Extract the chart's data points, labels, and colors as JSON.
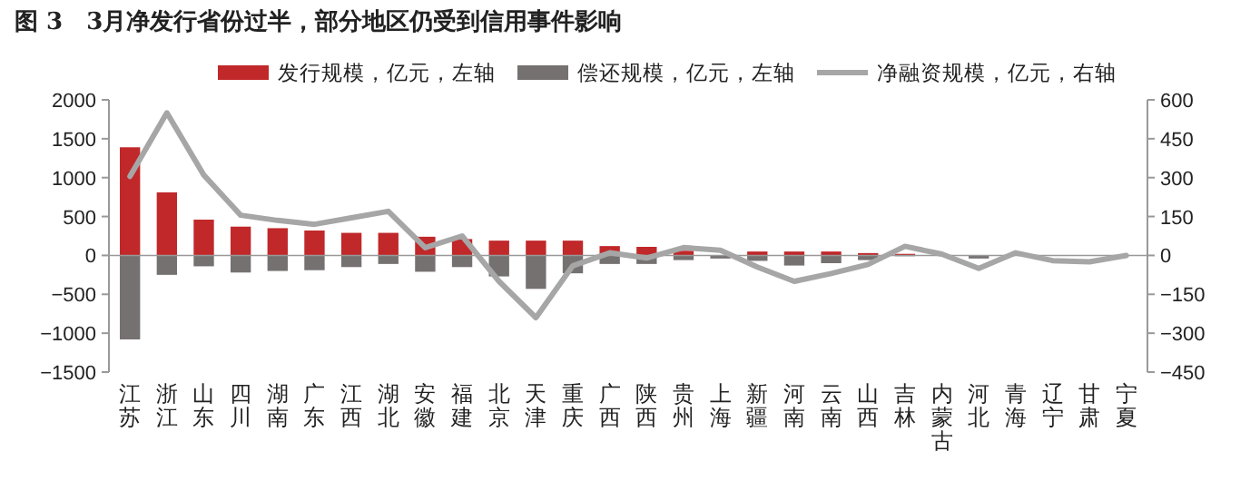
{
  "chart_data": {
    "type": "bar",
    "title": "图 3　3月净发行省份过半，部分地区仍受到信用事件影响",
    "categories": [
      "江苏",
      "浙江",
      "山东",
      "四川",
      "湖南",
      "广东",
      "江西",
      "湖北",
      "安徽",
      "福建",
      "北京",
      "天津",
      "重庆",
      "广西",
      "陕西",
      "贵州",
      "上海",
      "新疆",
      "河南",
      "云南",
      "山西",
      "吉林",
      "内蒙古",
      "河北",
      "青海",
      "辽宁",
      "甘肃",
      "宁夏"
    ],
    "stacked": true,
    "series": [
      {
        "name": "发行规模，亿元，左轴",
        "color": "#c0282a",
        "values": [
          1390,
          810,
          460,
          370,
          350,
          320,
          290,
          290,
          240,
          210,
          190,
          190,
          190,
          120,
          110,
          60,
          null,
          50,
          50,
          50,
          30,
          20,
          null,
          null,
          null,
          null,
          null,
          null
        ]
      },
      {
        "name": "偿还规模，亿元，左轴",
        "color": "#767171",
        "values": [
          -1080,
          -250,
          -140,
          -220,
          -200,
          -190,
          -150,
          -110,
          -210,
          -150,
          -270,
          -430,
          -230,
          -110,
          -110,
          -60,
          -40,
          -70,
          -130,
          -100,
          -60,
          -10,
          null,
          -40,
          null,
          null,
          null,
          null
        ]
      },
      {
        "name": "净融资规模，亿元，右轴",
        "type": "line",
        "axis": "y2",
        "color": "#a6a6a6",
        "values": [
          305,
          550,
          310,
          155,
          135,
          120,
          145,
          170,
          30,
          75,
          -100,
          -240,
          -40,
          10,
          -10,
          30,
          20,
          -45,
          -100,
          -70,
          -35,
          35,
          5,
          -50,
          10,
          -20,
          -25,
          0
        ]
      }
    ],
    "ylim": [
      -1500,
      2000
    ],
    "yticks": [
      -1500,
      -1000,
      -500,
      0,
      500,
      1000,
      1500,
      2000
    ],
    "y2lim": [
      -450,
      600
    ],
    "y2ticks": [
      -450,
      -300,
      -150,
      0,
      150,
      300,
      450,
      600
    ],
    "ref_lines": [
      {
        "axis": "y",
        "value": 0
      }
    ],
    "legend": "top",
    "grid": false
  }
}
